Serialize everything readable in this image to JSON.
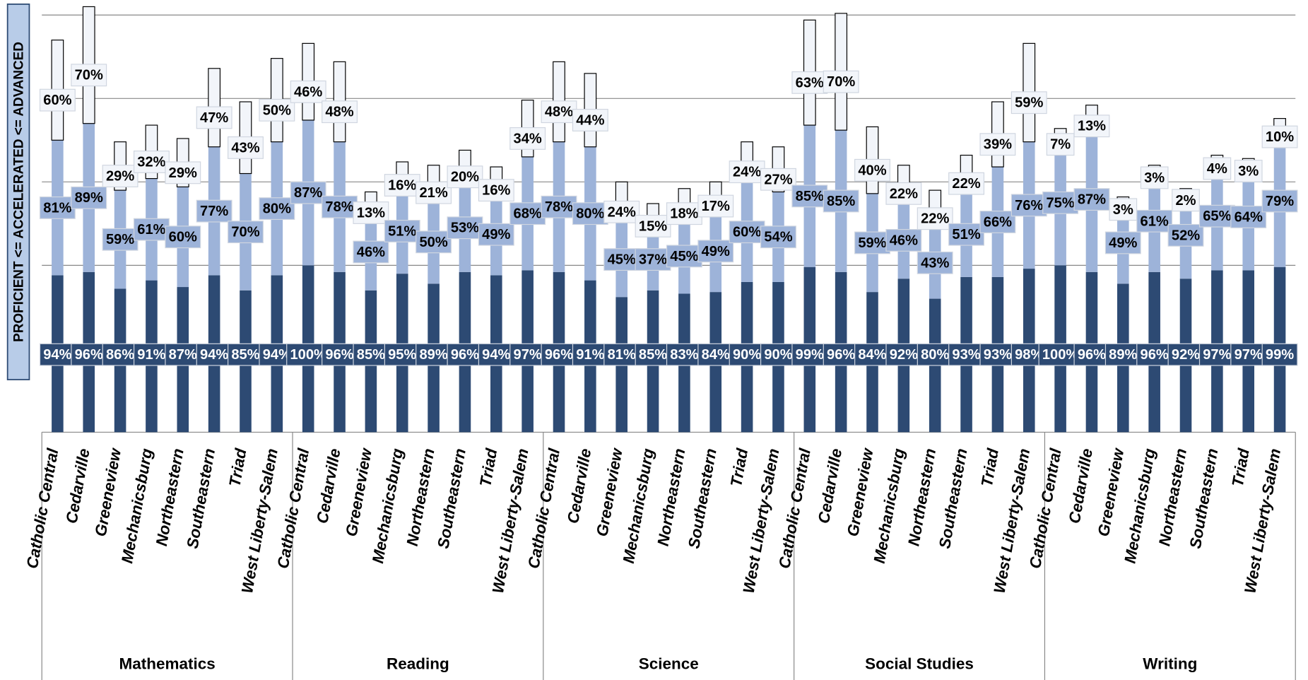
{
  "chart_data": {
    "type": "stacked-bar",
    "y_label": "PROFICIENT <= ACCELERATED <= ADVANCED",
    "groups": [
      "Mathematics",
      "Reading",
      "Science",
      "Social Studies",
      "Writing"
    ],
    "categories": [
      "Catholic Central",
      "Cedarville",
      "Greeneview",
      "Mechanicsburg",
      "Northeastern",
      "Southeastern",
      "Triad",
      "West Liberty-Salem",
      "Catholic Central",
      "Cedarville",
      "Greeneview",
      "Mechanicsburg",
      "Northeastern",
      "Southeastern",
      "Triad",
      "West Liberty-Salem",
      "Catholic Central",
      "Cedarville",
      "Greeneview",
      "Mechanicsburg",
      "Northeastern",
      "Southeastern",
      "Triad",
      "West Liberty-Salem",
      "Catholic Central",
      "Cedarville",
      "Greeneview",
      "Mechanicsburg",
      "Northeastern",
      "Southeastern",
      "Triad",
      "West Liberty-Salem",
      "Catholic Central",
      "Cedarville",
      "Greeneview",
      "Mechanicsburg",
      "Northeastern",
      "Southeastern",
      "Triad",
      "West Liberty-Salem"
    ],
    "series": [
      {
        "color": "#2d4a73",
        "label_color": "#ffffff",
        "values": [
          94,
          96,
          86,
          91,
          87,
          94,
          85,
          94,
          100,
          96,
          85,
          95,
          89,
          96,
          94,
          97,
          96,
          91,
          81,
          85,
          83,
          84,
          90,
          90,
          99,
          96,
          84,
          92,
          80,
          93,
          93,
          98,
          100,
          96,
          89,
          96,
          92,
          97,
          97,
          99
        ],
        "value_labels": [
          "94%",
          "96%",
          "86%",
          "91%",
          "87%",
          "94%",
          "85%",
          "94%",
          "100%",
          "96%",
          "85%",
          "95%",
          "89%",
          "96%",
          "94%",
          "97%",
          "96%",
          "91%",
          "81%",
          "85%",
          "83%",
          "84%",
          "90%",
          "90%",
          "99%",
          "96%",
          "84%",
          "92%",
          "80%",
          "93%",
          "93%",
          "98%",
          "100%",
          "96%",
          "89%",
          "96%",
          "92%",
          "97%",
          "97%",
          "99%"
        ]
      },
      {
        "color": "#9db3d9",
        "label_color": "#000000",
        "values": [
          81,
          89,
          59,
          61,
          60,
          77,
          70,
          80,
          87,
          78,
          46,
          51,
          50,
          53,
          49,
          68,
          78,
          80,
          45,
          37,
          45,
          49,
          60,
          54,
          85,
          85,
          59,
          46,
          43,
          51,
          66,
          76,
          75,
          87,
          49,
          61,
          52,
          65,
          64,
          79
        ],
        "value_labels": [
          "81%",
          "89%",
          "59%",
          "61%",
          "60%",
          "77%",
          "70%",
          "80%",
          "87%",
          "78%",
          "46%",
          "51%",
          "50%",
          "53%",
          "49%",
          "68%",
          "78%",
          "80%",
          "45%",
          "37%",
          "45%",
          "49%",
          "60%",
          "54%",
          "85%",
          "85%",
          "59%",
          "46%",
          "43%",
          "51%",
          "66%",
          "76%",
          "75%",
          "87%",
          "49%",
          "61%",
          "52%",
          "65%",
          "64%",
          "79%"
        ]
      },
      {
        "color": "#f2f5fa",
        "label_color": "#000000",
        "values": [
          60,
          70,
          29,
          32,
          29,
          47,
          43,
          50,
          46,
          48,
          13,
          16,
          21,
          20,
          16,
          34,
          48,
          44,
          24,
          15,
          18,
          17,
          24,
          27,
          63,
          70,
          40,
          22,
          22,
          22,
          39,
          59,
          7,
          13,
          3,
          3,
          2,
          4,
          3,
          10
        ],
        "value_labels": [
          "60%",
          "70%",
          "29%",
          "32%",
          "29%",
          "47%",
          "43%",
          "50%",
          "46%",
          "48%",
          "13%",
          "16%",
          "21%",
          "20%",
          "16%",
          "34%",
          "48%",
          "44%",
          "24%",
          "15%",
          "18%",
          "17%",
          "24%",
          "27%",
          "63%",
          "70%",
          "40%",
          "22%",
          "22%",
          "22%",
          "39%",
          "59%",
          "7%",
          "13%",
          "3%",
          "3%",
          "2%",
          "4%",
          "3%",
          "10%"
        ]
      }
    ],
    "ylim": [
      0,
      250
    ],
    "yticks": [
      0,
      50,
      100,
      150,
      200,
      250
    ],
    "grid": true
  }
}
